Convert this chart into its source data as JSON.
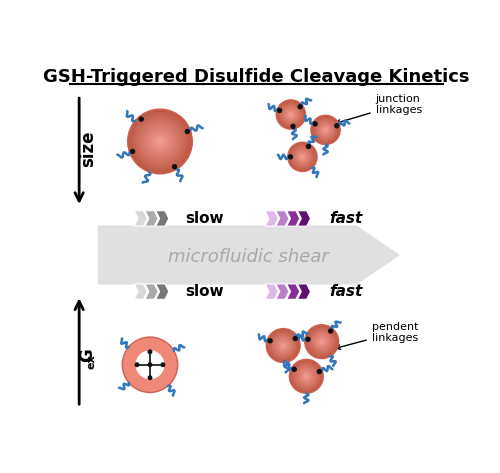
{
  "title": "GSH-Triggered Disulfide Cleavage Kinetics",
  "title_fontsize": 13,
  "bg_color": "#ffffff",
  "size_label": "size",
  "gex_label": "G",
  "gex_sub": "ex",
  "shear_label": "microfluidic shear",
  "slow_label": "slow",
  "fast_label": "fast",
  "junction_label": "junction\nlinkages",
  "pendent_label": "pendent\nlinkages",
  "dot_color": "#111111",
  "blue_color": "#3377bb",
  "gray_chevrons": [
    "#d8d8d8",
    "#aaaaaa",
    "#777777"
  ],
  "purple_chevrons": [
    "#ddb8e8",
    "#b87ec8",
    "#883099",
    "#5e1070"
  ],
  "main_arrow_color": "#e0e0e0",
  "gel_salmon": "#f08878",
  "gel_light": "#f5b0a0",
  "gel_edge": "#d06050"
}
